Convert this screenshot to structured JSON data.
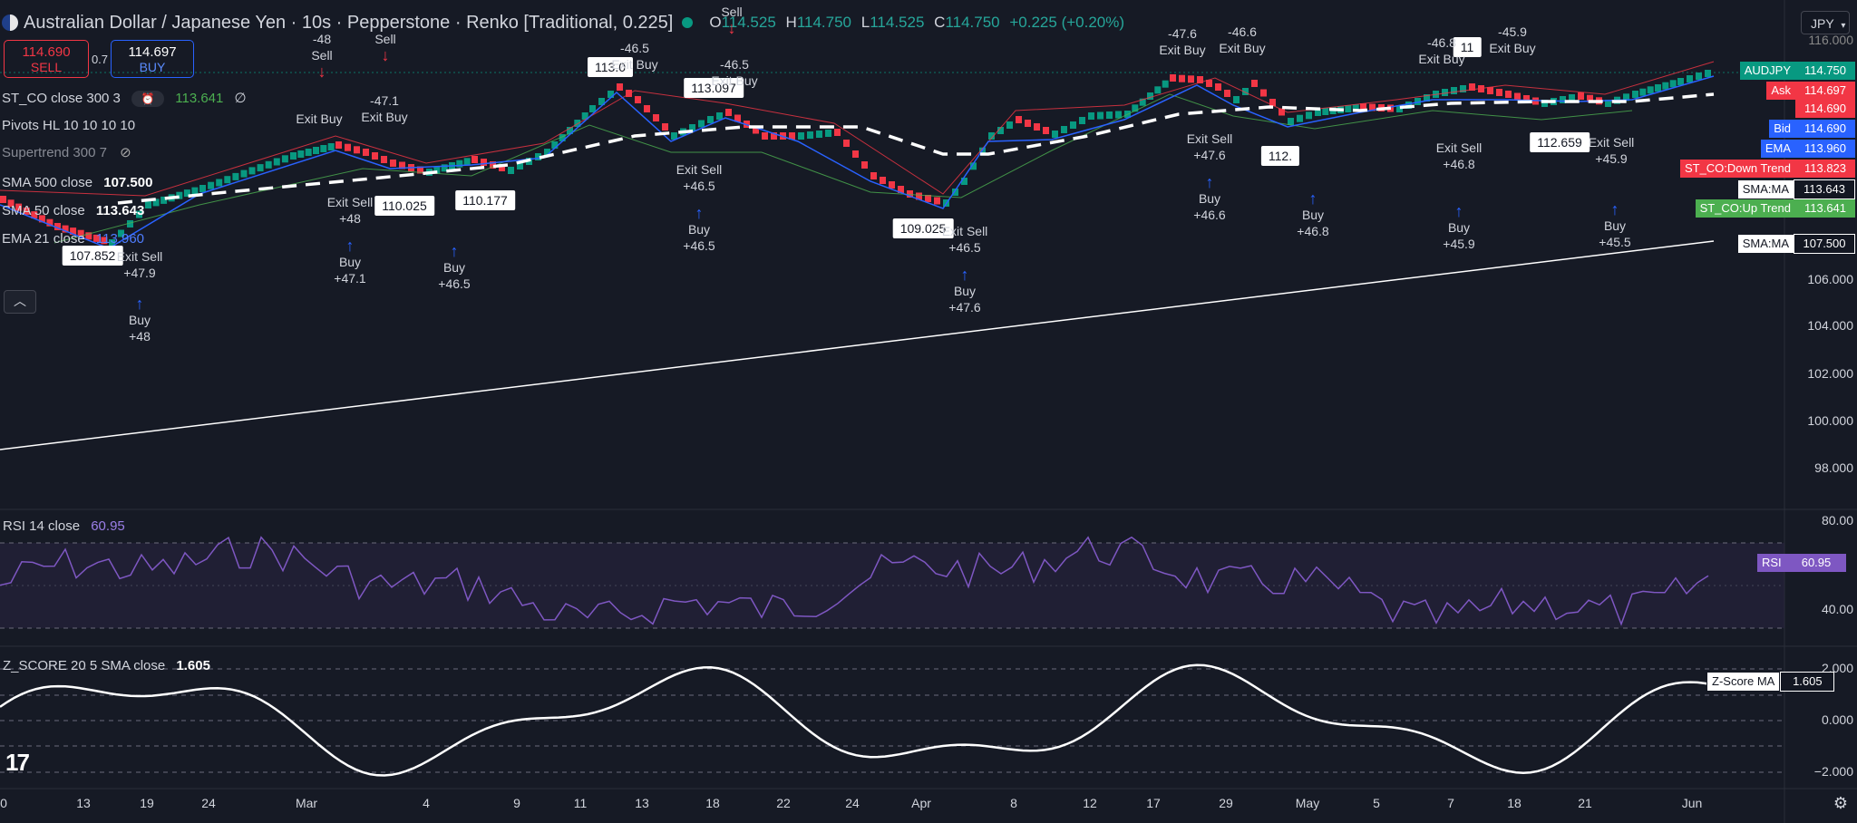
{
  "header": {
    "title": "Australian Dollar / Japanese Yen · 10s · Pepperstone · Renko [Traditional, 0.225]",
    "ohlc": {
      "o_label": "O",
      "o": "114.525",
      "h_label": "H",
      "h": "114.750",
      "l_label": "L",
      "l": "114.525",
      "c_label": "C",
      "c": "114.750",
      "change": "+0.225 (+0.20%)"
    },
    "currency": "JPY"
  },
  "trade": {
    "sell_price": "114.690",
    "sell_label": "SELL",
    "spread": "0.7",
    "buy_price": "114.697",
    "buy_label": "BUY"
  },
  "indicators": [
    {
      "label": "ST_CO close 300 3",
      "value": "113.641",
      "suffix": "∅"
    },
    {
      "label": "Pivots HL 10 10 10 10"
    },
    {
      "label": "Supertrend 300 7"
    },
    {
      "label": "SMA 500 close",
      "value": "107.500"
    },
    {
      "label": "SMA 50 close",
      "value": "113.643"
    },
    {
      "label": "EMA 21 close",
      "value": "113.960"
    }
  ],
  "rsi_pane": {
    "label": "RSI 14 close",
    "value": "60.95",
    "tag": "RSI",
    "tag_value": "60.95",
    "ticks": [
      "80.00",
      "40.00"
    ]
  },
  "z_pane": {
    "label": "Z_SCORE 20 5 SMA close",
    "value": "1.605",
    "tag": "Z-Score MA",
    "tag_value": "1.605",
    "ticks": [
      "2.000",
      "0.000",
      "−2.000"
    ]
  },
  "price_axis": [
    "116.000",
    "106.000",
    "104.000",
    "102.000",
    "100.000",
    "98.000"
  ],
  "price_tags": [
    {
      "name": "AUDJPY",
      "value": "114.750",
      "bg": "#089981",
      "fg": "#ffffff"
    },
    {
      "name": "Ask",
      "value": "114.697",
      "bg": "#f23645",
      "fg": "#ffffff"
    },
    {
      "name": "",
      "value": "114.690",
      "bg": "#f23645",
      "fg": "#ffffff"
    },
    {
      "name": "Bid",
      "value": "114.690",
      "bg": "#2962ff",
      "fg": "#ffffff"
    },
    {
      "name": "EMA",
      "value": "113.960",
      "bg": "#2962ff",
      "fg": "#ffffff"
    },
    {
      "name": "ST_CO:Down Trend",
      "value": "113.823",
      "bg": "#f23645",
      "fg": "#ffffff"
    },
    {
      "name": "SMA:MA",
      "value": "113.643",
      "bg": "#ffffff",
      "fg": "#131722"
    },
    {
      "name": "ST_CO:Up Trend",
      "value": "113.641",
      "bg": "#4caf50",
      "fg": "#ffffff"
    },
    {
      "name": "SMA:MA",
      "value": "107.500",
      "bg": "#ffffff",
      "fg": "#131722"
    }
  ],
  "time_axis": [
    "0",
    "13",
    "19",
    "24",
    "Mar",
    "4",
    "9",
    "11",
    "13",
    "18",
    "22",
    "24",
    "Apr",
    "8",
    "12",
    "17",
    "29",
    "May",
    "5",
    "7",
    "18",
    "21",
    "Jun"
  ],
  "pivots": [
    "107.852",
    "110.025",
    "110.177",
    "113.0",
    "113.097",
    "109.025",
    "112.",
    "112.659",
    "11"
  ],
  "signals": {
    "exit_sell": "Exit Sell",
    "exit_buy": "Exit Buy",
    "buy": "Buy",
    "sell": "Sell",
    "values": [
      "+47.9",
      "+48",
      "+47.1",
      "+46.5",
      "+46.5",
      "+47.6",
      "+46.6",
      "+46.8",
      "+45.9",
      "+45.5",
      "-48",
      "-47.1",
      "-46.5",
      "-47.6",
      "-46.6",
      "-46.8",
      "-45.9"
    ]
  },
  "colors": {
    "bg": "#161a25",
    "up": "#089981",
    "down": "#f23645",
    "sma500": "#ffffff",
    "ema": "#2962ff",
    "rsi": "#7e57c2"
  },
  "icons": {
    "logo": "tradingview-logo-icon",
    "settings": "gear-icon",
    "eye": "eye-off-icon",
    "collapse": "chevron-up-icon"
  }
}
